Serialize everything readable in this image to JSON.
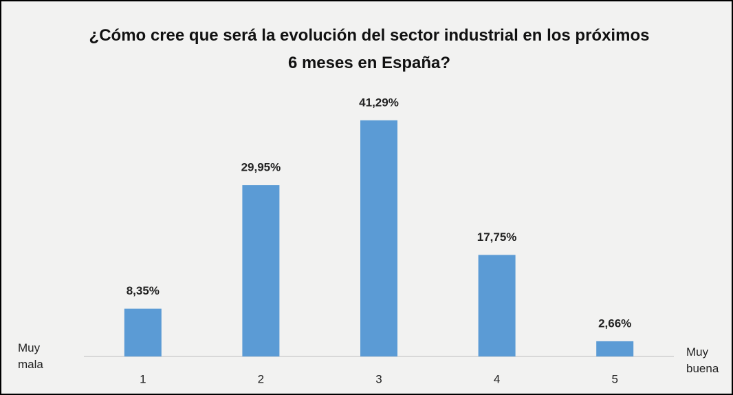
{
  "chart_data": {
    "type": "bar",
    "title": "¿Cómo cree que será la evolución del sector industrial en los próximos 6 meses en España?",
    "categories": [
      "1",
      "2",
      "3",
      "4",
      "5"
    ],
    "values": [
      8.35,
      29.95,
      41.29,
      17.75,
      2.66
    ],
    "value_labels": [
      "8,35%",
      "29,95%",
      "41,29%",
      "17,75%",
      "2,66%"
    ],
    "color": "#5b9bd5",
    "ylim": [
      0,
      45
    ],
    "annotations": [
      "Muy mala",
      "Muy buena"
    ]
  }
}
